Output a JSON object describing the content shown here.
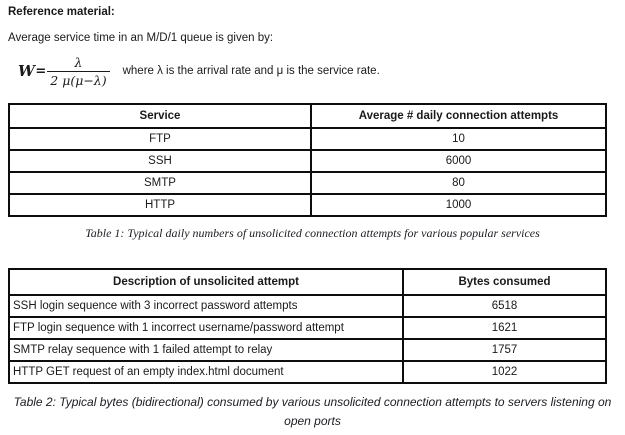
{
  "page": {
    "heading": "Reference material:",
    "intro": "Average service time in an M/D/1 queue is given by:"
  },
  "formula": {
    "lhs": "W",
    "equals": "=",
    "numerator": "λ",
    "denominator": "2 μ(μ−λ)",
    "explanation": "where λ is the arrival rate and μ is the service rate."
  },
  "table1": {
    "headers": [
      "Service",
      "Average # daily connection attempts"
    ],
    "rows": [
      [
        "FTP",
        "10"
      ],
      [
        "SSH",
        "6000"
      ],
      [
        "SMTP",
        "80"
      ],
      [
        "HTTP",
        "1000"
      ]
    ],
    "caption": "Table 1: Typical daily numbers of unsolicited connection attempts for various popular services"
  },
  "table2": {
    "headers": [
      "Description of unsolicited attempt",
      "Bytes consumed"
    ],
    "rows": [
      [
        "SSH login sequence with 3 incorrect password attempts",
        "6518"
      ],
      [
        "FTP login sequence with 1 incorrect username/password attempt",
        "1621"
      ],
      [
        "SMTP relay sequence with 1 failed attempt to relay",
        "1757"
      ],
      [
        "HTTP GET request of an empty index.html document",
        "1022"
      ]
    ],
    "caption": "Table 2: Typical bytes (bidirectional) consumed by various unsolicited connection attempts to servers listening on open ports"
  }
}
